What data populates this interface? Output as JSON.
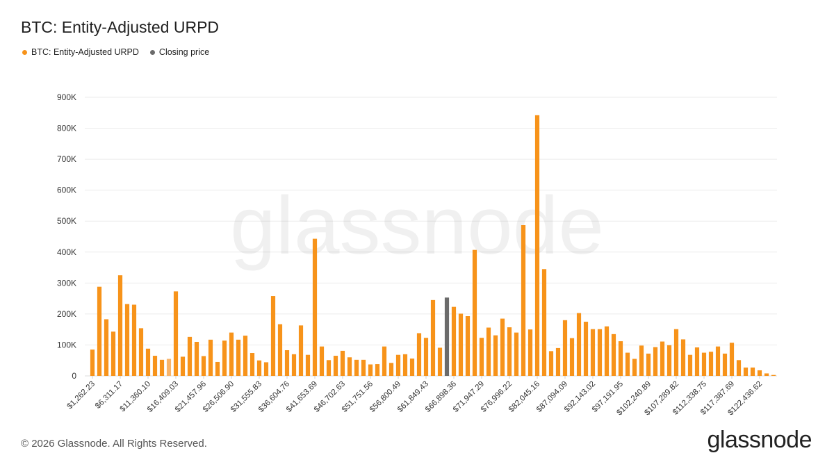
{
  "header": {
    "title": "BTC: Entity-Adjusted URPD"
  },
  "legend": [
    {
      "label": "BTC: Entity-Adjusted URPD",
      "color": "#f7931a"
    },
    {
      "label": "Closing price",
      "color": "#6b6b6b"
    }
  ],
  "footer": {
    "copyright": "© 2026 Glassnode. All Rights Reserved.",
    "brand": "glassnode",
    "watermark": "glassnode"
  },
  "colors": {
    "bar": "#f7931a",
    "bar_light": "#f8b46a",
    "closing_bar": "#6b6b6b",
    "grid": "#ebebeb"
  },
  "chart_data": {
    "type": "bar",
    "title": "BTC: Entity-Adjusted URPD",
    "ylim": [
      0,
      900000
    ],
    "grid": true,
    "legend_position": "top-left",
    "y_ticks": [
      {
        "value": 0,
        "label": "0"
      },
      {
        "value": 100000,
        "label": "100K"
      },
      {
        "value": 200000,
        "label": "200K"
      },
      {
        "value": 300000,
        "label": "300K"
      },
      {
        "value": 400000,
        "label": "400K"
      },
      {
        "value": 500000,
        "label": "500K"
      },
      {
        "value": 600000,
        "label": "600K"
      },
      {
        "value": 700000,
        "label": "700K"
      },
      {
        "value": 800000,
        "label": "800K"
      },
      {
        "value": 900000,
        "label": "900K"
      }
    ],
    "x_tick_labels": [
      {
        "index": 0,
        "label": "$1,262.23"
      },
      {
        "index": 4,
        "label": "$6,311.17"
      },
      {
        "index": 8,
        "label": "$11,360.10"
      },
      {
        "index": 12,
        "label": "$16,409.03"
      },
      {
        "index": 16,
        "label": "$21,457.96"
      },
      {
        "index": 20,
        "label": "$26,506.90"
      },
      {
        "index": 24,
        "label": "$31,555.83"
      },
      {
        "index": 28,
        "label": "$36,604.76"
      },
      {
        "index": 32,
        "label": "$41,653.69"
      },
      {
        "index": 36,
        "label": "$46,702.63"
      },
      {
        "index": 40,
        "label": "$51,751.56"
      },
      {
        "index": 44,
        "label": "$56,800.49"
      },
      {
        "index": 48,
        "label": "$61,849.43"
      },
      {
        "index": 52,
        "label": "$66,898.36"
      },
      {
        "index": 56,
        "label": "$71,947.29"
      },
      {
        "index": 60,
        "label": "$76,996.22"
      },
      {
        "index": 64,
        "label": "$82,045.16"
      },
      {
        "index": 68,
        "label": "$87,094.09"
      },
      {
        "index": 72,
        "label": "$92,143.02"
      },
      {
        "index": 76,
        "label": "$97,191.95"
      },
      {
        "index": 80,
        "label": "$102,240.89"
      },
      {
        "index": 84,
        "label": "$107,289.82"
      },
      {
        "index": 88,
        "label": "$112,338.75"
      },
      {
        "index": 92,
        "label": "$117,387.69"
      },
      {
        "index": 96,
        "label": "$122,436.62"
      }
    ],
    "closing_price_index": 51,
    "highlight_light_index": 11,
    "series": [
      {
        "name": "BTC: Entity-Adjusted URPD",
        "values": [
          85000,
          288000,
          183000,
          143000,
          325000,
          232000,
          230000,
          154000,
          88000,
          65000,
          52000,
          55000,
          273000,
          62000,
          126000,
          110000,
          64000,
          117000,
          45000,
          114000,
          140000,
          117000,
          130000,
          74000,
          50000,
          44000,
          258000,
          167000,
          83000,
          70000,
          163000,
          68000,
          443000,
          95000,
          51000,
          65000,
          81000,
          60000,
          52000,
          52000,
          37000,
          38000,
          95000,
          42000,
          68000,
          70000,
          56000,
          138000,
          123000,
          245000,
          91000,
          253000,
          223000,
          201000,
          193000,
          407000,
          123000,
          156000,
          131000,
          185000,
          157000,
          140000,
          487000,
          150000,
          842000,
          345000,
          80000,
          90000,
          180000,
          122000,
          203000,
          175000,
          151000,
          151000,
          160000,
          135000,
          112000,
          75000,
          55000,
          98000,
          72000,
          93000,
          111000,
          99000,
          151000,
          118000,
          68000,
          92000,
          75000,
          78000,
          95000,
          72000,
          107000,
          51000,
          27000,
          27000,
          18000,
          8000,
          3000
        ]
      }
    ]
  }
}
